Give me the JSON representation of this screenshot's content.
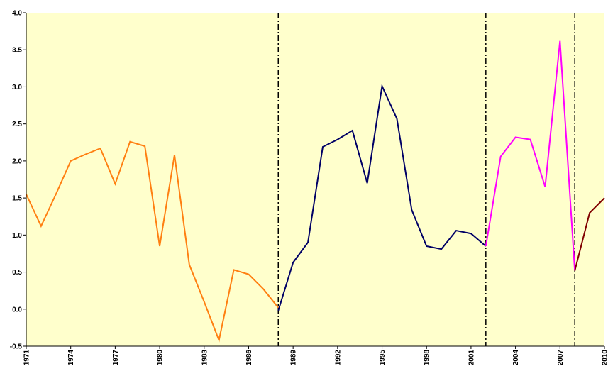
{
  "chart_data": {
    "type": "line",
    "title": "",
    "xlabel": "",
    "ylabel": "",
    "xlim": [
      1971,
      2010
    ],
    "ylim": [
      -0.5,
      4.0
    ],
    "grid": false,
    "legend": "none",
    "background_color": "#FFFFCC",
    "y_ticks": [
      "-0.5",
      "0.0",
      "0.5",
      "1.0",
      "1.5",
      "2.0",
      "2.5",
      "3.0",
      "3.5",
      "4.0"
    ],
    "y_tick_values": [
      -0.5,
      0.0,
      0.5,
      1.0,
      1.5,
      2.0,
      2.5,
      3.0,
      3.5,
      4.0
    ],
    "x_ticks": [
      "1971",
      "1974",
      "1977",
      "1980",
      "1983",
      "1986",
      "1989",
      "1992",
      "1995",
      "1998",
      "2001",
      "2004",
      "2007",
      "2010"
    ],
    "x_tick_values": [
      1971,
      1974,
      1977,
      1980,
      1983,
      1986,
      1989,
      1992,
      1995,
      1998,
      2001,
      2004,
      2007,
      2010
    ],
    "vertical_lines": [
      1988,
      2002,
      2008
    ],
    "vertical_line_style": "dash-dot",
    "series": [
      {
        "color": "#FF7F11",
        "x": [
          1971,
          1972,
          1973,
          1974,
          1975,
          1976,
          1977,
          1978,
          1979,
          1980,
          1981,
          1982,
          1983,
          1984,
          1985,
          1986,
          1987,
          1988
        ],
        "y": [
          1.55,
          1.12,
          1.55,
          2.0,
          2.09,
          2.17,
          1.69,
          2.26,
          2.2,
          0.85,
          2.08,
          0.6,
          0.1,
          -0.42,
          0.53,
          0.47,
          0.27,
          0.02
        ]
      },
      {
        "color": "#000066",
        "x": [
          1988,
          1989,
          1990,
          1991,
          1992,
          1993,
          1994,
          1995,
          1996,
          1997,
          1998,
          1999,
          2000,
          2001,
          2002
        ],
        "y": [
          -0.02,
          0.63,
          0.9,
          2.19,
          2.29,
          2.41,
          1.7,
          3.01,
          2.57,
          1.34,
          0.85,
          0.81,
          1.06,
          1.02,
          0.85
        ]
      },
      {
        "color": "#FF00FF",
        "x": [
          2002,
          2003,
          2004,
          2005,
          2006,
          2007,
          2008
        ],
        "y": [
          0.85,
          2.06,
          2.32,
          2.29,
          1.65,
          3.62,
          0.52
        ]
      },
      {
        "color": "#800000",
        "x": [
          2008,
          2009,
          2010
        ],
        "y": [
          0.52,
          1.3,
          1.5
        ]
      }
    ]
  }
}
